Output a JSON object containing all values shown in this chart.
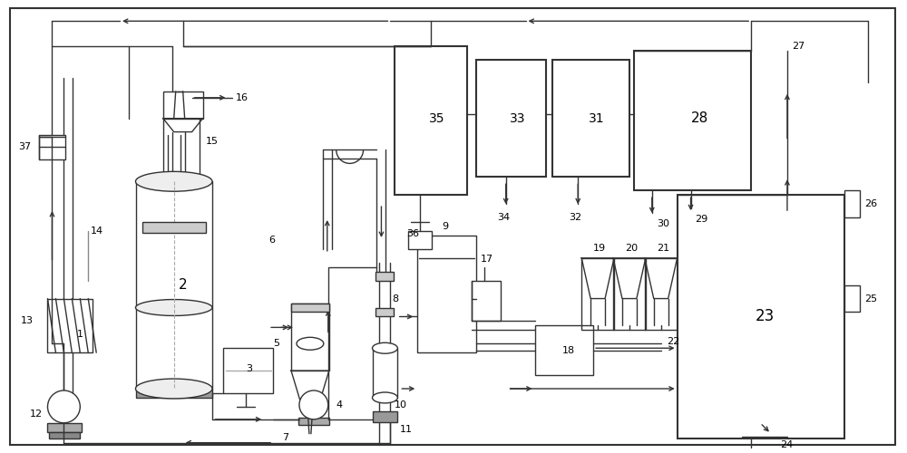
{
  "bg_color": "#ffffff",
  "lc": "#333333",
  "lw": 1.0,
  "figsize": [
    10,
    5
  ],
  "dpi": 100
}
